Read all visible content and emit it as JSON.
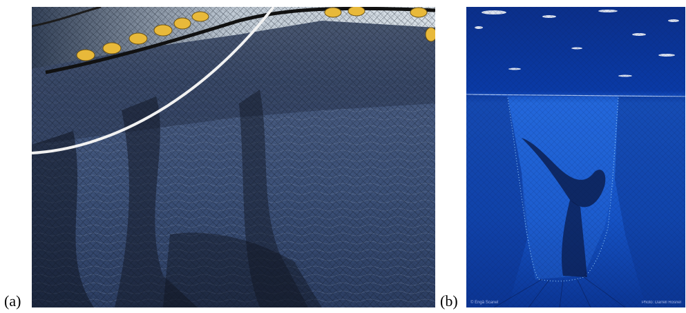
{
  "figure": {
    "panel_a": {
      "label": "(a)"
    },
    "panel_b": {
      "label": "(b)",
      "credit_left": "© Engä Scanel",
      "credit_right": "Photo: Darrell Rosnel"
    }
  },
  "colors": {
    "deep_blue": "#0b3ea8",
    "mid_blue": "#1d5fd6",
    "net_dark": "#1a2235",
    "water_a": "#3b4f74",
    "float_yellow": "#e8b93a",
    "sky": "#dfe9ee"
  }
}
